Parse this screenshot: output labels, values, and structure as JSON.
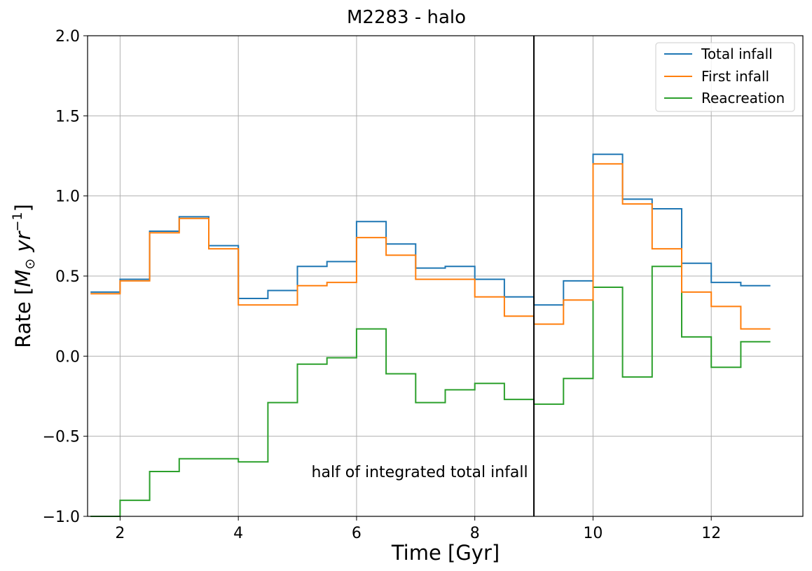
{
  "chart_data": {
    "type": "line",
    "step": true,
    "title": "M2283 - halo",
    "xlabel": "Time [Gyr]",
    "ylabel_main": "Rate [",
    "ylabel_sym": "M",
    "ylabel_sub": "⊙",
    "ylabel_unit": " yr",
    "ylabel_exp": "−1",
    "ylabel_close": "]",
    "xlim": [
      1.45,
      13.55
    ],
    "ylim": [
      -1.0,
      2.0
    ],
    "xticks": [
      2,
      4,
      6,
      8,
      10,
      12
    ],
    "yticks": [
      -1.0,
      -0.5,
      0.0,
      0.5,
      1.0,
      1.5,
      2.0
    ],
    "xtick_labels": [
      "2",
      "4",
      "6",
      "8",
      "10",
      "12"
    ],
    "ytick_labels": [
      "−1.0",
      "−0.5",
      "0.0",
      "0.5",
      "1.0",
      "1.5",
      "2.0"
    ],
    "grid": true,
    "legend_position": "top-right",
    "bin_edges": [
      1.5,
      2.0,
      2.5,
      3.0,
      3.5,
      4.0,
      4.5,
      5.0,
      5.5,
      6.0,
      6.5,
      7.0,
      7.5,
      8.0,
      8.5,
      9.0,
      9.5,
      10.0,
      10.5,
      11.0,
      11.5,
      12.0,
      12.5,
      13.0
    ],
    "series": [
      {
        "name": "Total infall",
        "color": "#1f77b4",
        "values": [
          0.4,
          0.48,
          0.78,
          0.87,
          0.69,
          0.36,
          0.41,
          0.56,
          0.59,
          0.84,
          0.7,
          0.55,
          0.56,
          0.48,
          0.37,
          0.32,
          0.47,
          1.26,
          0.98,
          0.92,
          0.58,
          0.46,
          0.44
        ]
      },
      {
        "name": "First infall",
        "color": "#ff7f0e",
        "values": [
          0.39,
          0.47,
          0.77,
          0.86,
          0.67,
          0.32,
          0.32,
          0.44,
          0.46,
          0.74,
          0.63,
          0.48,
          0.48,
          0.37,
          0.25,
          0.2,
          0.35,
          1.2,
          0.95,
          0.67,
          0.4,
          0.31,
          0.17
        ]
      },
      {
        "name": "Reacreation",
        "color": "#2ca02c",
        "values": [
          -1.0,
          -0.9,
          -0.72,
          -0.64,
          -0.64,
          -0.66,
          -0.29,
          -0.05,
          -0.01,
          0.17,
          -0.11,
          -0.29,
          -0.21,
          -0.17,
          -0.27,
          -0.3,
          -0.14,
          0.43,
          -0.13,
          0.56,
          0.12,
          -0.07,
          0.09
        ]
      }
    ],
    "vline": {
      "x": 9.0,
      "color": "#000000"
    },
    "annotation": {
      "text": "half of integrated total infall",
      "x": 8.9,
      "y": -0.72
    }
  }
}
